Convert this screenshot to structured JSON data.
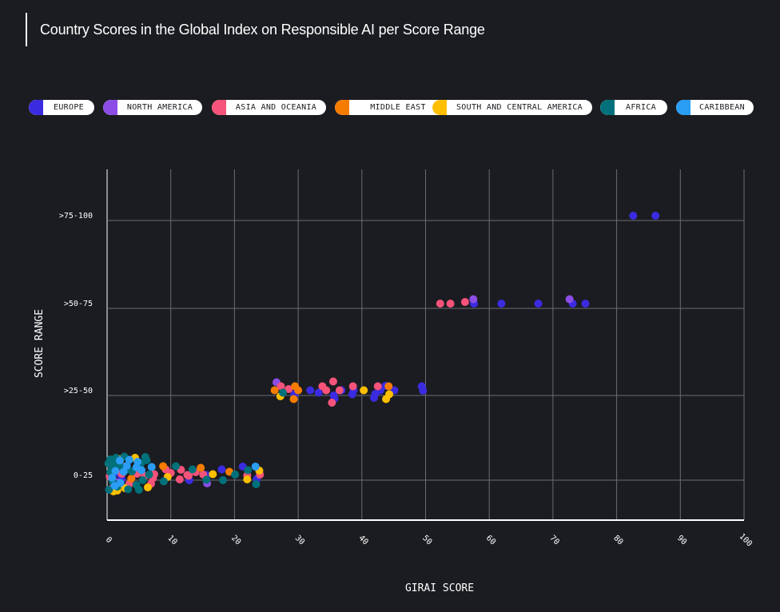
{
  "header": {
    "title": "Country Scores in the Global Index on Responsible AI per Score Range"
  },
  "legend": [
    {
      "label": "EUROPE",
      "color": "#3b2be0"
    },
    {
      "label": "NORTH AMERICA",
      "color": "#8c4de6"
    },
    {
      "label": "ASIA AND OCEANIA",
      "color": "#f5537a"
    },
    {
      "label": "MIDDLE EAST",
      "color": "#f57c00"
    },
    {
      "label": "SOUTH AND CENTRAL AMERICA",
      "color": "#ffbf00"
    },
    {
      "label": "AFRICA",
      "color": "#00717a"
    },
    {
      "label": "CARIBBEAN",
      "color": "#2a9df4"
    }
  ],
  "chart_data": {
    "type": "scatter",
    "title": "Country Scores in the Global Index on Responsible AI per Score Range",
    "xlabel": "GIRAI SCORE",
    "ylabel": "SCORE RANGE",
    "xlim": [
      0,
      100
    ],
    "x_ticks": [
      "0",
      "10",
      "20",
      "30",
      "40",
      "50",
      "60",
      "70",
      "80",
      "90",
      "100"
    ],
    "y_categories": [
      "0-25",
      ">25-50",
      ">50-75",
      ">75-100"
    ],
    "grid": true,
    "legend_position": "top",
    "series": [
      {
        "name": "EUROPE",
        "color": "#3b2be0",
        "points": [
          [
            82.6,
            3,
            0
          ],
          [
            86.1,
            3,
            0
          ],
          [
            57.6,
            2,
            0
          ],
          [
            61.9,
            2,
            0
          ],
          [
            67.7,
            2,
            0
          ],
          [
            73.1,
            2,
            0
          ],
          [
            75.1,
            2,
            0
          ],
          [
            29.4,
            1,
            -0.9
          ],
          [
            31.9,
            1,
            0.1
          ],
          [
            33.2,
            1,
            -0.5
          ],
          [
            35.6,
            1,
            -1.2
          ],
          [
            35.7,
            1,
            -2.0
          ],
          [
            36.8,
            1,
            0.1
          ],
          [
            38.5,
            1,
            -0.9
          ],
          [
            38.7,
            1,
            0.1
          ],
          [
            41.9,
            1,
            -1.8
          ],
          [
            42.1,
            1,
            -0.8
          ],
          [
            42.9,
            1,
            0.1
          ],
          [
            43.7,
            1,
            1.2
          ],
          [
            45.1,
            1,
            0.1
          ],
          [
            49.4,
            1,
            1.1
          ],
          [
            49.6,
            1,
            0
          ],
          [
            1.8,
            0,
            0.5
          ],
          [
            2.3,
            0,
            -0.9
          ],
          [
            4.2,
            0,
            0.3
          ],
          [
            12.9,
            0,
            -1.2
          ],
          [
            15.6,
            0,
            0.1
          ],
          [
            18.0,
            0,
            1.5
          ],
          [
            21.3,
            0,
            2.2
          ],
          [
            23.5,
            0,
            -0.9
          ]
        ]
      },
      {
        "name": "NORTH AMERICA",
        "color": "#8c4de6",
        "points": [
          [
            57.5,
            2,
            1.1
          ],
          [
            72.6,
            2,
            1.1
          ],
          [
            26.6,
            1,
            2.1
          ],
          [
            15.7,
            0,
            -2.0
          ],
          [
            1.6,
            0,
            -1.7
          ]
        ]
      },
      {
        "name": "ASIA AND OCEANIA",
        "color": "#f5537a",
        "points": [
          [
            52.3,
            2,
            0
          ],
          [
            53.9,
            2,
            0
          ],
          [
            56.2,
            2,
            0.4
          ],
          [
            27.3,
            1,
            1.1
          ],
          [
            28.5,
            1,
            0.4
          ],
          [
            33.8,
            1,
            1.1
          ],
          [
            34.4,
            1,
            0.1
          ],
          [
            35.3,
            1,
            -3.0
          ],
          [
            35.5,
            1,
            2.3
          ],
          [
            36.5,
            1,
            0.1
          ],
          [
            38.6,
            1,
            1.1
          ],
          [
            42.5,
            1,
            1.1
          ],
          [
            0.4,
            0,
            -0.2
          ],
          [
            0.6,
            0,
            -3.4
          ],
          [
            2.1,
            0,
            2.7
          ],
          [
            2.3,
            0,
            0.4
          ],
          [
            3.5,
            0,
            -2.1
          ],
          [
            4.7,
            0,
            0.4
          ],
          [
            5.9,
            0,
            -0.2
          ],
          [
            6.9,
            0,
            -2.1
          ],
          [
            7.2,
            0,
            -0.7
          ],
          [
            7.4,
            0,
            0.3
          ],
          [
            9.2,
            0,
            1.5
          ],
          [
            10.0,
            0,
            0.6
          ],
          [
            11.4,
            0,
            -1.0
          ],
          [
            11.6,
            0,
            1.4
          ],
          [
            12.6,
            0,
            0.1
          ],
          [
            12.8,
            0,
            -0.1
          ],
          [
            13.9,
            0,
            0.8
          ],
          [
            15.1,
            0,
            0.2
          ],
          [
            22.0,
            0,
            0.0
          ],
          [
            24.0,
            0,
            0.2
          ]
        ]
      },
      {
        "name": "MIDDLE EAST",
        "color": "#f57c00",
        "points": [
          [
            26.3,
            1,
            0.1
          ],
          [
            29.3,
            1,
            -2.1
          ],
          [
            29.5,
            1,
            1.1
          ],
          [
            30.0,
            1,
            0.1
          ],
          [
            44.2,
            1,
            1.1
          ],
          [
            3.8,
            0,
            -0.8
          ],
          [
            8.8,
            0,
            2.3
          ],
          [
            14.7,
            0,
            1.9
          ],
          [
            19.2,
            0,
            0.9
          ]
        ]
      },
      {
        "name": "SOUTH AND CENTRAL AMERICA",
        "color": "#ffbf00",
        "points": [
          [
            27.2,
            1,
            -1.4
          ],
          [
            40.3,
            1,
            0.1
          ],
          [
            43.8,
            1,
            -2.1
          ],
          [
            44.3,
            1,
            -0.9
          ],
          [
            1.8,
            0,
            4.1
          ],
          [
            4.4,
            0,
            4.4
          ],
          [
            16.6,
            0,
            0.3
          ],
          [
            22.0,
            0,
            -1.0
          ],
          [
            23.9,
            0,
            1.2
          ],
          [
            9.5,
            0,
            -0.4
          ],
          [
            2.8,
            0,
            -3.2
          ],
          [
            6.4,
            0,
            -3.0
          ],
          [
            1.0,
            0,
            -4.0
          ],
          [
            1.6,
            0,
            -3.8
          ]
        ]
      },
      {
        "name": "AFRICA",
        "color": "#00717a",
        "points": [
          [
            27.6,
            1,
            -0.5
          ],
          [
            0.2,
            0,
            3.0
          ],
          [
            0.5,
            0,
            4.0
          ],
          [
            0.8,
            0,
            1.8
          ],
          [
            1.1,
            0,
            2.7
          ],
          [
            1.4,
            0,
            4.4
          ],
          [
            1.6,
            0,
            -2.8
          ],
          [
            2.1,
            0,
            2.4
          ],
          [
            2.7,
            0,
            4.7
          ],
          [
            3.1,
            0,
            1.6
          ],
          [
            3.3,
            0,
            -3.5
          ],
          [
            3.9,
            0,
            1.0
          ],
          [
            4.6,
            0,
            -2.4
          ],
          [
            5.3,
            0,
            3.0
          ],
          [
            5.6,
            0,
            -1.2
          ],
          [
            6.0,
            0,
            4.6
          ],
          [
            6.2,
            0,
            3.8
          ],
          [
            6.6,
            0,
            0.2
          ],
          [
            8.9,
            0,
            -1.5
          ],
          [
            10.8,
            0,
            2.3
          ],
          [
            13.4,
            0,
            1.5
          ],
          [
            15.6,
            0,
            -1.1
          ],
          [
            18.2,
            0,
            -1.2
          ],
          [
            20.1,
            0,
            0.2
          ],
          [
            22.1,
            0,
            1.3
          ],
          [
            23.4,
            0,
            -2.2
          ],
          [
            0.3,
            0,
            -3.6
          ],
          [
            0.9,
            0,
            -1.6
          ],
          [
            5.0,
            0,
            -3.6
          ],
          [
            0.5,
            0,
            0.8
          ]
        ]
      },
      {
        "name": "CARIBBEAN",
        "color": "#2a9df4",
        "points": [
          [
            0.8,
            0,
            -0.6
          ],
          [
            1.3,
            0,
            1.1
          ],
          [
            2.0,
            0,
            3.7
          ],
          [
            3.1,
            0,
            2.4
          ],
          [
            3.5,
            0,
            3.9
          ],
          [
            4.6,
            0,
            2.0
          ],
          [
            4.8,
            0,
            3.4
          ],
          [
            5.4,
            0,
            1.3
          ],
          [
            7.0,
            0,
            2.1
          ],
          [
            23.3,
            0,
            2.2
          ],
          [
            2.1,
            0,
            -1.9
          ],
          [
            1.2,
            0,
            -2.6
          ],
          [
            2.6,
            0,
            0.9
          ]
        ]
      }
    ]
  }
}
